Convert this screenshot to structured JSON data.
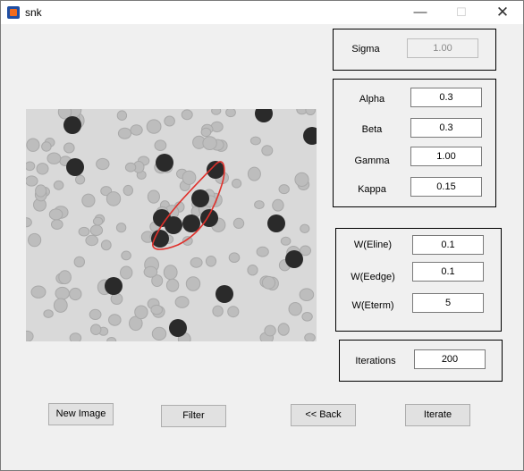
{
  "window": {
    "title": "snk"
  },
  "params": {
    "sigma": {
      "label": "Sigma",
      "value": "1.00"
    },
    "alpha": {
      "label": "Alpha",
      "value": "0.3"
    },
    "beta": {
      "label": "Beta",
      "value": "0.3"
    },
    "gamma": {
      "label": "Gamma",
      "value": "1.00"
    },
    "kappa": {
      "label": "Kappa",
      "value": "0.15"
    },
    "weline": {
      "label": "W(Eline)",
      "value": "0.1"
    },
    "wedge": {
      "label": "W(Eedge)",
      "value": "0.1"
    },
    "weterm": {
      "label": "W(Eterm)",
      "value": "5"
    },
    "iterations": {
      "label": "Iterations",
      "value": "200"
    }
  },
  "buttons": {
    "new_image": "New Image",
    "filter": "Filter",
    "back": "<< Back",
    "iterate": "Iterate"
  },
  "image": {
    "contour_color": "#e0302b"
  }
}
